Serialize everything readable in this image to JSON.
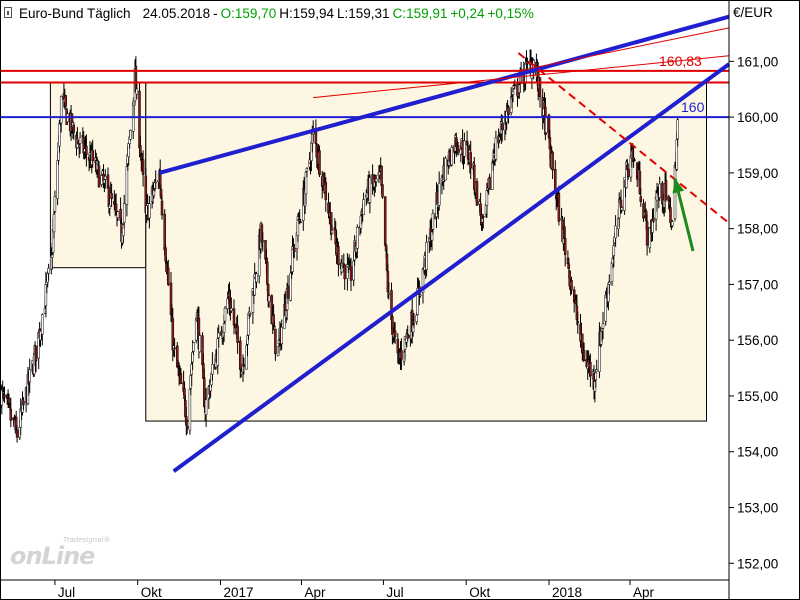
{
  "header": {
    "instrument": "Euro-Bund Täglich",
    "date": "24.05.2018",
    "open": "O:159,70",
    "high": "H:159,94",
    "low": "L:159,31",
    "close": "C:159,91",
    "change": "+0,24",
    "change_pct": "+0,15%"
  },
  "unit_label": "€/EUR",
  "logo": {
    "small": "Tradesignal®",
    "big": "onLine"
  },
  "colors": {
    "candle_up": "#ffffff",
    "candle_down": "#8b1a1a",
    "candle_edge": "#000000",
    "box_fill": "#fdf6e3",
    "blue": "#1f1fd0",
    "red": "#e00000",
    "green": "#1e8a1e"
  },
  "chart_data": {
    "type": "candlestick",
    "title": "Euro-Bund Täglich",
    "ylabel": "€/EUR",
    "ylim": [
      151.7,
      162.1
    ],
    "y_ticks": [
      {
        "v": 161,
        "label": "161,00"
      },
      {
        "v": 160,
        "label": "160,00"
      },
      {
        "v": 159,
        "label": "159,00"
      },
      {
        "v": 158,
        "label": "158,00"
      },
      {
        "v": 157,
        "label": "157,00"
      },
      {
        "v": 156,
        "label": "156,00"
      },
      {
        "v": 155,
        "label": "155,00"
      },
      {
        "v": 154,
        "label": "154,00"
      },
      {
        "v": 153,
        "label": "153,00"
      },
      {
        "v": 152,
        "label": "152,00"
      }
    ],
    "x_labels": [
      "Jul",
      "Okt",
      "2017",
      "Apr",
      "Jul",
      "Okt",
      "2018",
      "Apr"
    ],
    "x_label_dates": [
      "2016-07-01",
      "2016-10-01",
      "2017-01-01",
      "2017-04-01",
      "2017-07-01",
      "2017-10-01",
      "2018-01-01",
      "2018-04-01"
    ],
    "date_range": [
      "2016-05-01",
      "2018-07-20"
    ],
    "series_anchors": [
      [
        "2016-05-01",
        155.1
      ],
      [
        "2016-05-20",
        154.3
      ],
      [
        "2016-06-10",
        155.8
      ],
      [
        "2016-06-27",
        157.4
      ],
      [
        "2016-07-08",
        160.3
      ],
      [
        "2016-07-25",
        159.6
      ],
      [
        "2016-08-12",
        159.2
      ],
      [
        "2016-08-30",
        158.6
      ],
      [
        "2016-09-13",
        157.9
      ],
      [
        "2016-09-28",
        160.7
      ],
      [
        "2016-10-10",
        158.2
      ],
      [
        "2016-10-25",
        159.0
      ],
      [
        "2016-11-10",
        155.8
      ],
      [
        "2016-11-25",
        154.6
      ],
      [
        "2016-12-05",
        156.6
      ],
      [
        "2016-12-15",
        154.8
      ],
      [
        "2017-01-10",
        156.8
      ],
      [
        "2017-01-25",
        155.5
      ],
      [
        "2017-02-15",
        157.9
      ],
      [
        "2017-03-05",
        155.7
      ],
      [
        "2017-03-25",
        157.8
      ],
      [
        "2017-04-05",
        158.7
      ],
      [
        "2017-04-14",
        159.7
      ],
      [
        "2017-04-25",
        158.9
      ],
      [
        "2017-05-10",
        157.6
      ],
      [
        "2017-05-25",
        157.1
      ],
      [
        "2017-06-10",
        158.6
      ],
      [
        "2017-06-28",
        158.9
      ],
      [
        "2017-07-07",
        156.7
      ],
      [
        "2017-07-17",
        155.6
      ],
      [
        "2017-08-05",
        156.5
      ],
      [
        "2017-08-25",
        158.1
      ],
      [
        "2017-09-05",
        159.0
      ],
      [
        "2017-09-20",
        159.6
      ],
      [
        "2017-10-05",
        159.3
      ],
      [
        "2017-10-20",
        158.0
      ],
      [
        "2017-11-01",
        159.4
      ],
      [
        "2017-11-20",
        160.3
      ],
      [
        "2017-12-05",
        160.8
      ],
      [
        "2017-12-15",
        161.0
      ],
      [
        "2017-12-28",
        159.9
      ],
      [
        "2018-01-10",
        158.5
      ],
      [
        "2018-01-25",
        157.1
      ],
      [
        "2018-02-07",
        155.8
      ],
      [
        "2018-02-20",
        155.3
      ],
      [
        "2018-03-05",
        156.7
      ],
      [
        "2018-03-20",
        158.3
      ],
      [
        "2018-04-02",
        159.4
      ],
      [
        "2018-04-12",
        158.8
      ],
      [
        "2018-04-22",
        157.7
      ],
      [
        "2018-04-30",
        158.6
      ],
      [
        "2018-05-10",
        158.6
      ],
      [
        "2018-05-18",
        158.1
      ],
      [
        "2018-05-24",
        159.9
      ]
    ],
    "rectangles": [
      {
        "from": "2016-06-26",
        "to": "2016-10-10",
        "low": 157.3,
        "high": 160.62
      },
      {
        "from": "2016-10-10",
        "to": "2018-06-25",
        "low": 154.55,
        "high": 160.62
      }
    ],
    "levels": [
      {
        "value": 160.83,
        "label": "160,83",
        "color": "red"
      },
      {
        "value": 160.62,
        "label": "",
        "color": "red"
      },
      {
        "value": 160.0,
        "label": "160",
        "color": "blue"
      }
    ],
    "trendlines": [
      {
        "from": [
          "2016-10-25",
          159.0
        ],
        "to": [
          "2018-07-20",
          161.8
        ],
        "color": "blue",
        "style": "solid"
      },
      {
        "from": [
          "2016-11-10",
          153.65
        ],
        "to": [
          "2018-07-20",
          160.95
        ],
        "color": "blue",
        "style": "solid"
      },
      {
        "from": [
          "2017-11-28",
          161.15
        ],
        "to": [
          "2018-07-20",
          158.1
        ],
        "color": "red",
        "style": "dashed"
      },
      {
        "from": [
          "2017-04-14",
          160.35
        ],
        "to": [
          "2018-07-20",
          161.1
        ],
        "color": "red",
        "style": "thin"
      },
      {
        "from": [
          "2017-11-28",
          160.83
        ],
        "to": [
          "2018-07-20",
          161.6
        ],
        "color": "red",
        "style": "thin"
      }
    ],
    "arrow": {
      "from": [
        "2018-06-10",
        157.6
      ],
      "to": [
        "2018-05-21",
        158.9
      ],
      "color": "green"
    }
  }
}
